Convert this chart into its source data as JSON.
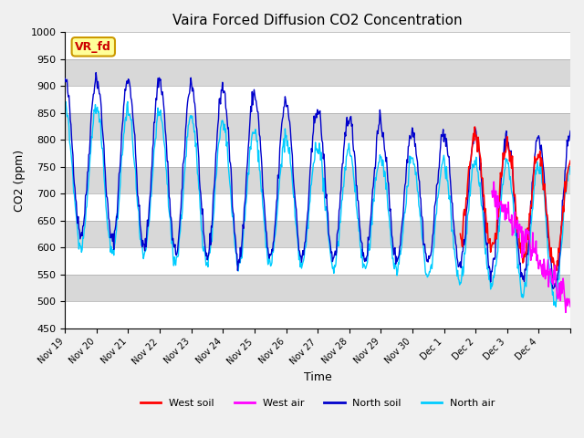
{
  "title": "Vaira Forced Diffusion CO2 Concentration",
  "xlabel": "Time",
  "ylabel": "CO2 (ppm)",
  "ylim": [
    450,
    1000
  ],
  "legend_entries": [
    "West soil",
    "West air",
    "North soil",
    "North air"
  ],
  "legend_colors": [
    "#ff0000",
    "#ff00ff",
    "#0000cc",
    "#00ccff"
  ],
  "annotation_text": "VR_fd",
  "annotation_bg": "#ffff99",
  "annotation_border": "#cc9900",
  "annotation_text_color": "#cc0000",
  "tick_labels": [
    "Nov 19",
    "Nov 20",
    "Nov 21",
    "Nov 22",
    "Nov 23",
    "Nov 24",
    "Nov 25",
    "Nov 26",
    "Nov 27",
    "Nov 28",
    "Nov 29",
    "Nov 30",
    "Dec 1",
    "Dec 2",
    "Dec 3",
    "Dec 4",
    ""
  ],
  "n_days": 16,
  "background_color": "#e8e8e8",
  "grid_band_colors": [
    "#ffffff",
    "#d8d8d8"
  ],
  "north_soil_color": "#0000cc",
  "north_air_color": "#00ccff",
  "west_soil_color": "#ff0000",
  "west_air_color": "#ff00ff"
}
